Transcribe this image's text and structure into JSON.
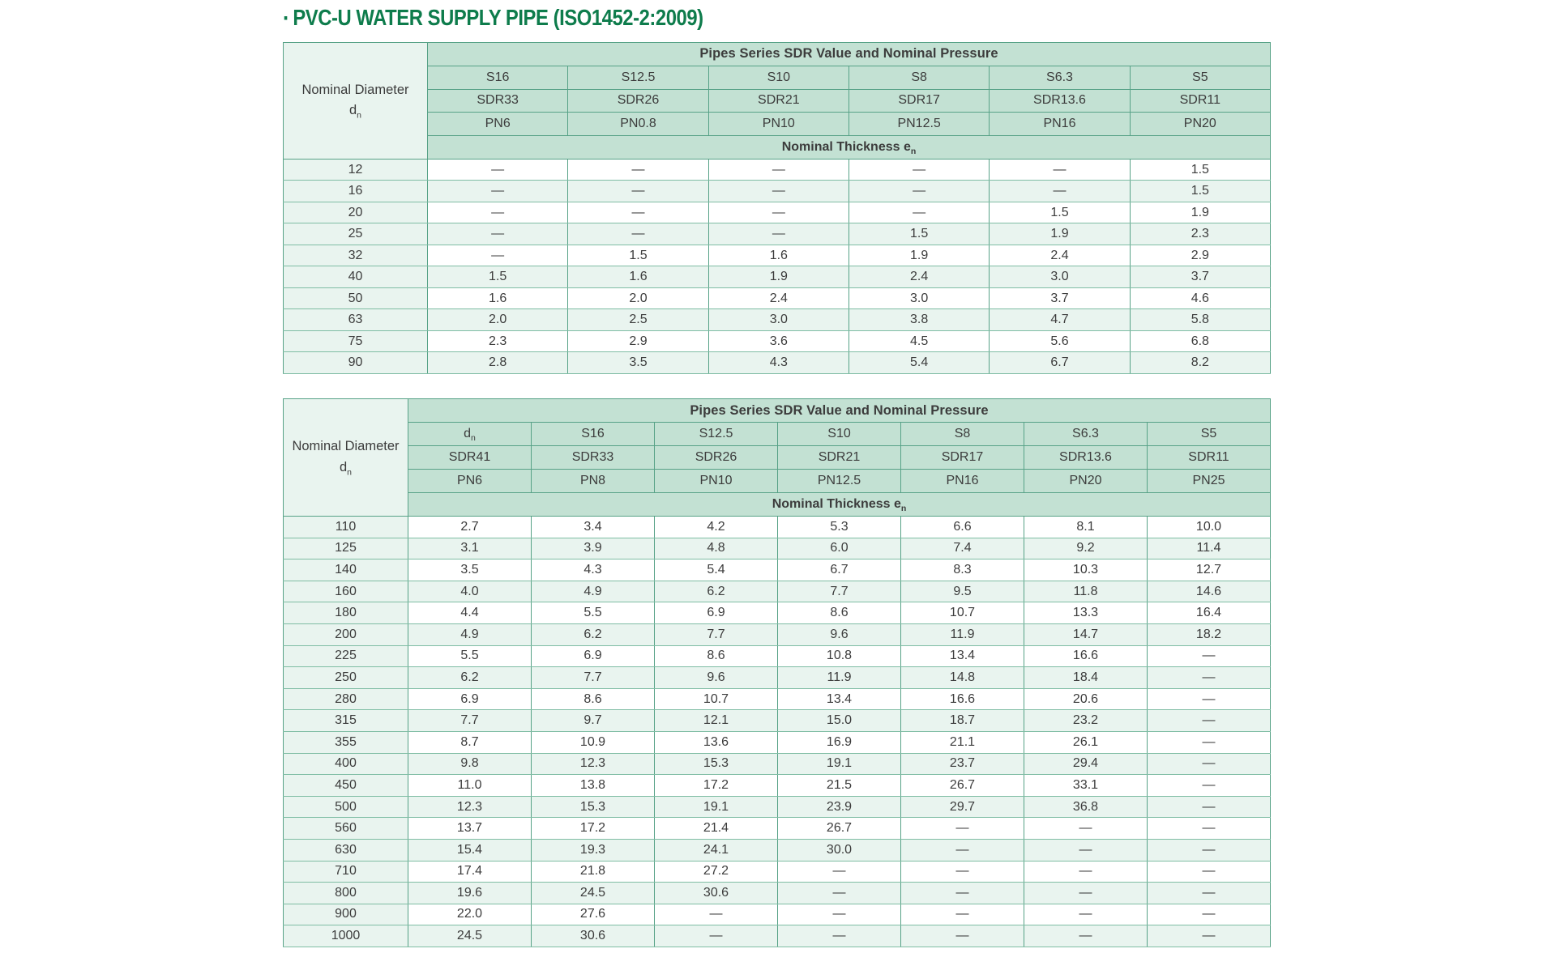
{
  "title": {
    "bullet": "·",
    "text": "PVC-U WATER SUPPLY PIPE (ISO1452-2:2009)"
  },
  "colors": {
    "title": "#0e7c4c",
    "header_bg": "#c3e1d3",
    "row_tint": "#e9f4ef",
    "row_white": "#ffffff",
    "border": "#57a287",
    "text": "#3c3c3c"
  },
  "tables": [
    {
      "name": "pipe-table-small-diameters",
      "span_header": "Pipes Series SDR Value and Nominal Pressure",
      "corner": {
        "line1": "Nominal Diameter",
        "line2": "d",
        "sub": "n"
      },
      "thickness": {
        "text": "Nominal Thickness e",
        "sub": "n"
      },
      "columns": [
        [
          "S16",
          "S12.5",
          "S10",
          "S8",
          "S6.3",
          "S5"
        ],
        [
          "SDR33",
          "SDR26",
          "SDR21",
          "SDR17",
          "SDR13.6",
          "SDR11"
        ],
        [
          "PN6",
          "PN0.8",
          "PN10",
          "PN12.5",
          "PN16",
          "PN20"
        ]
      ],
      "rows": [
        {
          "d": "12",
          "v": [
            "—",
            "—",
            "—",
            "—",
            "—",
            "1.5"
          ]
        },
        {
          "d": "16",
          "v": [
            "—",
            "—",
            "—",
            "—",
            "—",
            "1.5"
          ]
        },
        {
          "d": "20",
          "v": [
            "—",
            "—",
            "—",
            "—",
            "1.5",
            "1.9"
          ]
        },
        {
          "d": "25",
          "v": [
            "—",
            "—",
            "—",
            "1.5",
            "1.9",
            "2.3"
          ]
        },
        {
          "d": "32",
          "v": [
            "—",
            "1.5",
            "1.6",
            "1.9",
            "2.4",
            "2.9"
          ]
        },
        {
          "d": "40",
          "v": [
            "1.5",
            "1.6",
            "1.9",
            "2.4",
            "3.0",
            "3.7"
          ]
        },
        {
          "d": "50",
          "v": [
            "1.6",
            "2.0",
            "2.4",
            "3.0",
            "3.7",
            "4.6"
          ]
        },
        {
          "d": "63",
          "v": [
            "2.0",
            "2.5",
            "3.0",
            "3.8",
            "4.7",
            "5.8"
          ]
        },
        {
          "d": "75",
          "v": [
            "2.3",
            "2.9",
            "3.6",
            "4.5",
            "5.6",
            "6.8"
          ]
        },
        {
          "d": "90",
          "v": [
            "2.8",
            "3.5",
            "4.3",
            "5.4",
            "6.7",
            "8.2"
          ]
        }
      ]
    },
    {
      "name": "pipe-table-large-diameters",
      "span_header": "Pipes Series SDR Value and Nominal Pressure",
      "corner": {
        "line1": "Nominal Diameter",
        "line2": "d",
        "sub": "n"
      },
      "thickness": {
        "text": "Nominal Thickness e",
        "sub": "n"
      },
      "columns": [
        [
          {
            "text": "d",
            "sub": "n"
          },
          "S16",
          "S12.5",
          "S10",
          "S8",
          "S6.3",
          "S5"
        ],
        [
          "SDR41",
          "SDR33",
          "SDR26",
          "SDR21",
          "SDR17",
          "SDR13.6",
          "SDR11"
        ],
        [
          "PN6",
          "PN8",
          "PN10",
          "PN12.5",
          "PN16",
          "PN20",
          "PN25"
        ]
      ],
      "rows": [
        {
          "d": "110",
          "v": [
            "2.7",
            "3.4",
            "4.2",
            "5.3",
            "6.6",
            "8.1",
            "10.0"
          ]
        },
        {
          "d": "125",
          "v": [
            "3.1",
            "3.9",
            "4.8",
            "6.0",
            "7.4",
            "9.2",
            "11.4"
          ]
        },
        {
          "d": "140",
          "v": [
            "3.5",
            "4.3",
            "5.4",
            "6.7",
            "8.3",
            "10.3",
            "12.7"
          ]
        },
        {
          "d": "160",
          "v": [
            "4.0",
            "4.9",
            "6.2",
            "7.7",
            "9.5",
            "11.8",
            "14.6"
          ]
        },
        {
          "d": "180",
          "v": [
            "4.4",
            "5.5",
            "6.9",
            "8.6",
            "10.7",
            "13.3",
            "16.4"
          ]
        },
        {
          "d": "200",
          "v": [
            "4.9",
            "6.2",
            "7.7",
            "9.6",
            "11.9",
            "14.7",
            "18.2"
          ]
        },
        {
          "d": "225",
          "v": [
            "5.5",
            "6.9",
            "8.6",
            "10.8",
            "13.4",
            "16.6",
            "—"
          ]
        },
        {
          "d": "250",
          "v": [
            "6.2",
            "7.7",
            "9.6",
            "11.9",
            "14.8",
            "18.4",
            "—"
          ]
        },
        {
          "d": "280",
          "v": [
            "6.9",
            "8.6",
            "10.7",
            "13.4",
            "16.6",
            "20.6",
            "—"
          ]
        },
        {
          "d": "315",
          "v": [
            "7.7",
            "9.7",
            "12.1",
            "15.0",
            "18.7",
            "23.2",
            "—"
          ]
        },
        {
          "d": "355",
          "v": [
            "8.7",
            "10.9",
            "13.6",
            "16.9",
            "21.1",
            "26.1",
            "—"
          ]
        },
        {
          "d": "400",
          "v": [
            "9.8",
            "12.3",
            "15.3",
            "19.1",
            "23.7",
            "29.4",
            "—"
          ]
        },
        {
          "d": "450",
          "v": [
            "11.0",
            "13.8",
            "17.2",
            "21.5",
            "26.7",
            "33.1",
            "—"
          ]
        },
        {
          "d": "500",
          "v": [
            "12.3",
            "15.3",
            "19.1",
            "23.9",
            "29.7",
            "36.8",
            "—"
          ]
        },
        {
          "d": "560",
          "v": [
            "13.7",
            "17.2",
            "21.4",
            "26.7",
            "—",
            "—",
            "—"
          ]
        },
        {
          "d": "630",
          "v": [
            "15.4",
            "19.3",
            "24.1",
            "30.0",
            "—",
            "—",
            "—"
          ]
        },
        {
          "d": "710",
          "v": [
            "17.4",
            "21.8",
            "27.2",
            "—",
            "—",
            "—",
            "—"
          ]
        },
        {
          "d": "800",
          "v": [
            "19.6",
            "24.5",
            "30.6",
            "—",
            "—",
            "—",
            "—"
          ]
        },
        {
          "d": "900",
          "v": [
            "22.0",
            "27.6",
            "—",
            "—",
            "—",
            "—",
            "—"
          ]
        },
        {
          "d": "1000",
          "v": [
            "24.5",
            "30.6",
            "—",
            "—",
            "—",
            "—",
            "—"
          ]
        }
      ]
    }
  ]
}
